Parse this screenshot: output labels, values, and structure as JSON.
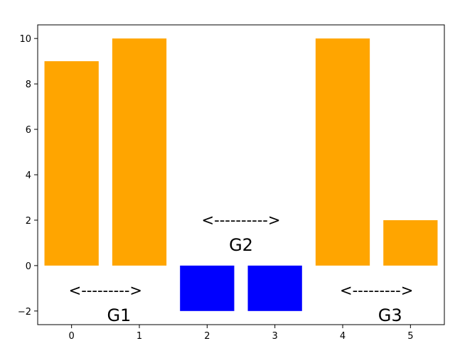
{
  "chart_data": {
    "type": "bar",
    "title": "",
    "xlabel": "",
    "ylabel": "",
    "categories": [
      "0",
      "1",
      "2",
      "3",
      "4",
      "5"
    ],
    "x": [
      0,
      1,
      2,
      3,
      4,
      5
    ],
    "values": [
      9,
      10,
      -2,
      -2,
      10,
      2
    ],
    "bar_colors": [
      "#ffa500",
      "#ffa500",
      "#0000ff",
      "#0000ff",
      "#ffa500",
      "#ffa500"
    ],
    "xlim": [
      -0.5,
      5.5
    ],
    "ylim": [
      -2.6,
      10.6
    ],
    "xticks": [
      0,
      1,
      2,
      3,
      4,
      5
    ],
    "yticks": [
      -2,
      0,
      2,
      4,
      6,
      8,
      10
    ],
    "ytick_labels": [
      "−2",
      "0",
      "2",
      "4",
      "6",
      "8",
      "10"
    ],
    "grid": false,
    "annotations": [
      {
        "text": "<--------->",
        "x": 0.5,
        "y": -1.1
      },
      {
        "text": "G1",
        "x": 0.7,
        "y": -2.2
      },
      {
        "text": "<---------->",
        "x": 2.5,
        "y": 2.0
      },
      {
        "text": "G2",
        "x": 2.5,
        "y": 0.9
      },
      {
        "text": "<--------->",
        "x": 4.5,
        "y": -1.1
      },
      {
        "text": "G3",
        "x": 4.7,
        "y": -2.2
      }
    ]
  }
}
